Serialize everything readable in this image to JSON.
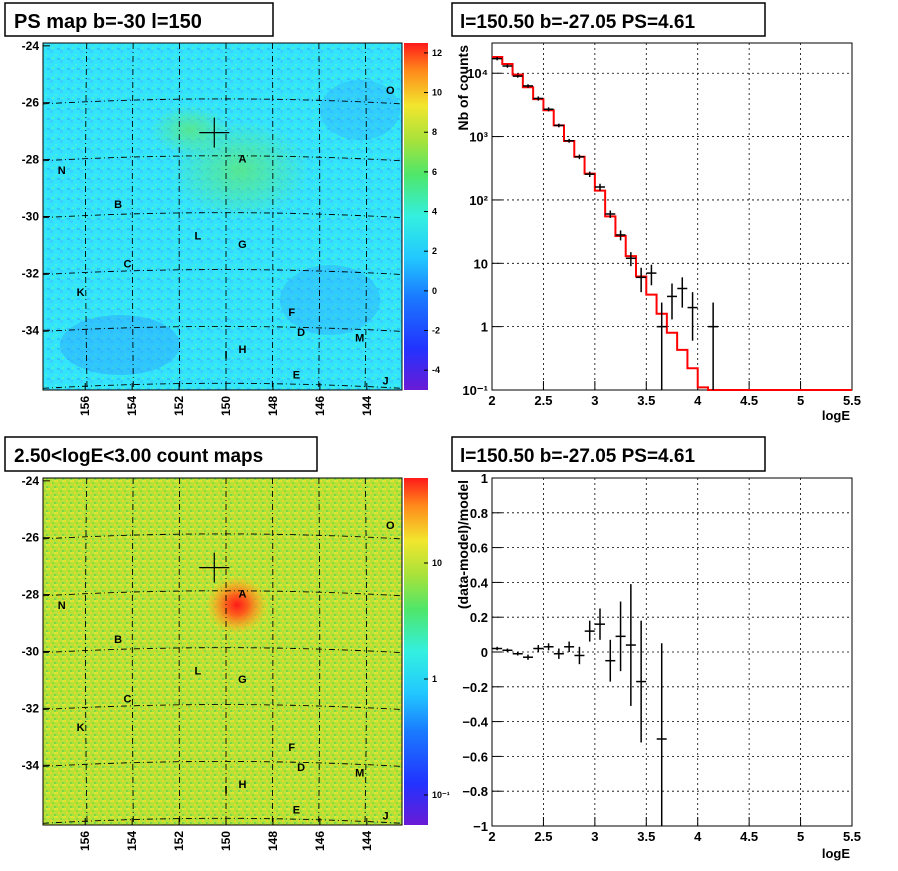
{
  "colors": {
    "model_line": "#ff0000",
    "data_points": "#000000",
    "map_bg": "#33e0ff",
    "count_bg": "#a8e23a"
  },
  "panels": {
    "tl": {
      "title": "PS map b=-30 l=150",
      "palette_labels": [
        "12",
        "10",
        "8",
        "6",
        "4",
        "2",
        "0",
        "-2",
        "-4"
      ],
      "y_ticks": [
        "-24",
        "-26",
        "-28",
        "-30",
        "-32",
        "-34"
      ],
      "x_ticks": [
        "156",
        "154",
        "152",
        "150",
        "148",
        "146",
        "144"
      ]
    },
    "bl": {
      "title": "2.50<logE<3.00 count maps",
      "palette_labels": [
        "10",
        "1",
        "10⁻¹"
      ],
      "y_ticks": [
        "-24",
        "-26",
        "-28",
        "-30",
        "-32",
        "-34"
      ],
      "x_ticks": [
        "156",
        "154",
        "152",
        "150",
        "148",
        "146",
        "144"
      ]
    },
    "tr": {
      "title": "l=150.50 b=-27.05 PS=4.61"
    },
    "br": {
      "title": "l=150.50 b=-27.05 PS=4.61"
    }
  },
  "sources": [
    {
      "name": "A",
      "l": 149.3,
      "b": -28.1
    },
    {
      "name": "B",
      "l": 154.6,
      "b": -29.7
    },
    {
      "name": "C",
      "l": 154.2,
      "b": -31.8
    },
    {
      "name": "D",
      "l": 146.8,
      "b": -34.2
    },
    {
      "name": "E",
      "l": 147.0,
      "b": -35.7
    },
    {
      "name": "F",
      "l": 147.2,
      "b": -33.5
    },
    {
      "name": "G",
      "l": 149.3,
      "b": -31.1
    },
    {
      "name": "H",
      "l": 149.3,
      "b": -34.8
    },
    {
      "name": "I",
      "l": 150.0,
      "b": -35.0
    },
    {
      "name": "J",
      "l": 143.2,
      "b": -35.9
    },
    {
      "name": "K",
      "l": 156.2,
      "b": -32.8
    },
    {
      "name": "L",
      "l": 151.2,
      "b": -30.8
    },
    {
      "name": "M",
      "l": 144.3,
      "b": -34.4
    },
    {
      "name": "N",
      "l": 157.0,
      "b": -28.5
    },
    {
      "name": "O",
      "l": 143.0,
      "b": -25.7
    }
  ],
  "marker": {
    "l": 150.5,
    "b": -27.05
  },
  "chart_data": [
    {
      "type": "line",
      "xlabel": "logE",
      "ylabel": "Nb of counts",
      "y_scale": "log",
      "xlim": [
        2,
        5.5
      ],
      "ylim": [
        0.1,
        30000
      ],
      "x_ticks": [
        "2",
        "2.5",
        "3",
        "3.5",
        "4",
        "4.5",
        "5",
        "5.5"
      ],
      "y_ticks": [
        {
          "v": 0.1,
          "t": "10⁻¹"
        },
        {
          "v": 1,
          "t": "1"
        },
        {
          "v": 10,
          "t": "10"
        },
        {
          "v": 100,
          "t": "10²"
        },
        {
          "v": 1000,
          "t": "10³"
        },
        {
          "v": 10000,
          "t": "10⁴"
        }
      ],
      "grid": true,
      "model_steps": {
        "edges": [
          2.0,
          2.1,
          2.2,
          2.3,
          2.4,
          2.5,
          2.6,
          2.7,
          2.8,
          2.9,
          3.0,
          3.1,
          3.2,
          3.3,
          3.4,
          3.5,
          3.6,
          3.7,
          3.8,
          3.9,
          4.0,
          4.1,
          4.2,
          5.5
        ],
        "values": [
          18000,
          14000,
          9500,
          6000,
          3900,
          2600,
          1500,
          850,
          480,
          260,
          140,
          55,
          27,
          13,
          6.2,
          3.2,
          1.6,
          0.8,
          0.43,
          0.22,
          0.11,
          0.1,
          0.1
        ]
      },
      "data_points": [
        {
          "x": 2.05,
          "y": 17000,
          "ylo": 16000,
          "yhi": 18000
        },
        {
          "x": 2.15,
          "y": 13000,
          "ylo": 12200,
          "yhi": 13800
        },
        {
          "x": 2.25,
          "y": 9000,
          "ylo": 8500,
          "yhi": 9500
        },
        {
          "x": 2.35,
          "y": 6300,
          "ylo": 5900,
          "yhi": 6700
        },
        {
          "x": 2.45,
          "y": 4000,
          "ylo": 3700,
          "yhi": 4300
        },
        {
          "x": 2.55,
          "y": 2700,
          "ylo": 2500,
          "yhi": 2900
        },
        {
          "x": 2.65,
          "y": 1500,
          "ylo": 1400,
          "yhi": 1600
        },
        {
          "x": 2.75,
          "y": 860,
          "ylo": 800,
          "yhi": 920
        },
        {
          "x": 2.85,
          "y": 480,
          "ylo": 440,
          "yhi": 520
        },
        {
          "x": 2.95,
          "y": 255,
          "ylo": 230,
          "yhi": 280
        },
        {
          "x": 3.05,
          "y": 160,
          "ylo": 140,
          "yhi": 180
        },
        {
          "x": 3.15,
          "y": 60,
          "ylo": 52,
          "yhi": 68
        },
        {
          "x": 3.25,
          "y": 28,
          "ylo": 23,
          "yhi": 33
        },
        {
          "x": 3.35,
          "y": 12,
          "ylo": 9,
          "yhi": 15
        },
        {
          "x": 3.45,
          "y": 6,
          "ylo": 3.5,
          "yhi": 8.5
        },
        {
          "x": 3.55,
          "y": 7,
          "ylo": 4.5,
          "yhi": 9.5
        },
        {
          "x": 3.65,
          "y": 1,
          "ylo": 0.1,
          "yhi": 2.4
        },
        {
          "x": 3.75,
          "y": 3,
          "ylo": 1.3,
          "yhi": 4.8
        },
        {
          "x": 3.85,
          "y": 4,
          "ylo": 2,
          "yhi": 6
        },
        {
          "x": 3.95,
          "y": 2,
          "ylo": 0.6,
          "yhi": 3.5
        },
        {
          "x": 4.15,
          "y": 1,
          "ylo": 0.1,
          "yhi": 2.4
        }
      ]
    },
    {
      "type": "scatter",
      "xlabel": "logE",
      "ylabel": "(data-model)/model",
      "xlim": [
        2,
        5.5
      ],
      "ylim": [
        -1,
        1
      ],
      "x_ticks": [
        "2",
        "2.5",
        "3",
        "3.5",
        "4",
        "4.5",
        "5",
        "5.5"
      ],
      "y_ticks": [
        {
          "v": -1,
          "t": "−1"
        },
        {
          "v": -0.8,
          "t": "−0.8"
        },
        {
          "v": -0.6,
          "t": "−0.6"
        },
        {
          "v": -0.4,
          "t": "−0.4"
        },
        {
          "v": -0.2,
          "t": "−0.2"
        },
        {
          "v": 0,
          "t": "0"
        },
        {
          "v": 0.2,
          "t": "0.2"
        },
        {
          "v": 0.4,
          "t": "0.4"
        },
        {
          "v": 0.6,
          "t": "0.6"
        },
        {
          "v": 0.8,
          "t": "0.8"
        },
        {
          "v": 1,
          "t": "1"
        }
      ],
      "grid": true,
      "data_points": [
        {
          "x": 2.05,
          "y": 0.02,
          "err": 0.01
        },
        {
          "x": 2.15,
          "y": 0.01,
          "err": 0.01
        },
        {
          "x": 2.25,
          "y": -0.01,
          "err": 0.01
        },
        {
          "x": 2.35,
          "y": -0.03,
          "err": 0.015
        },
        {
          "x": 2.45,
          "y": 0.02,
          "err": 0.02
        },
        {
          "x": 2.55,
          "y": 0.03,
          "err": 0.02
        },
        {
          "x": 2.65,
          "y": -0.01,
          "err": 0.03
        },
        {
          "x": 2.75,
          "y": 0.03,
          "err": 0.03
        },
        {
          "x": 2.85,
          "y": -0.02,
          "err": 0.05
        },
        {
          "x": 2.95,
          "y": 0.12,
          "err": 0.06
        },
        {
          "x": 3.05,
          "y": 0.16,
          "err": 0.09
        },
        {
          "x": 3.15,
          "y": -0.05,
          "err": 0.12
        },
        {
          "x": 3.25,
          "y": 0.09,
          "err": 0.2
        },
        {
          "x": 3.35,
          "y": 0.04,
          "err": 0.35
        },
        {
          "x": 3.45,
          "y": -0.17,
          "err": 0.35
        },
        {
          "x": 3.65,
          "y": -0.5,
          "err": 0.55
        }
      ]
    }
  ]
}
